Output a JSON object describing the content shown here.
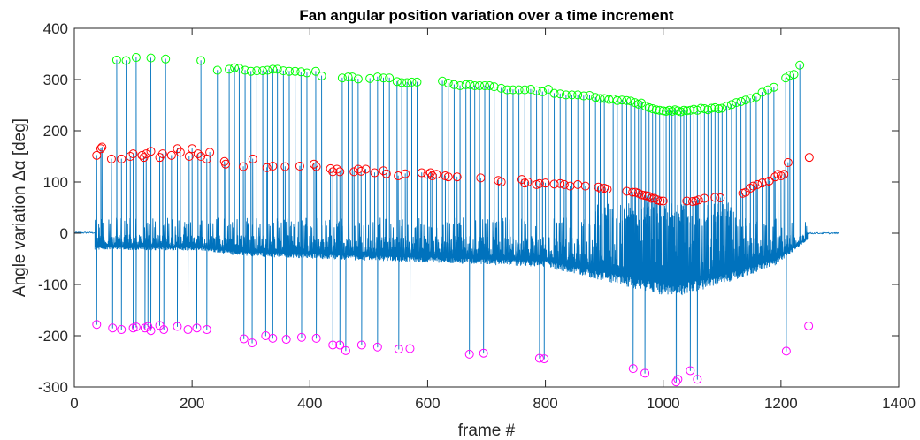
{
  "chart_data": {
    "type": "line",
    "title": "Fan angular position variation over a time increment",
    "xlabel": "frame #",
    "ylabel": "Angle variation Δα [deg]",
    "xlim": [
      0,
      1400
    ],
    "ylim": [
      -300,
      400
    ],
    "xticks": [
      0,
      200,
      400,
      600,
      800,
      1000,
      1200,
      1400
    ],
    "yticks": [
      -300,
      -200,
      -100,
      0,
      100,
      200,
      300,
      400
    ],
    "grid": false,
    "colors": {
      "line": "#0072BD",
      "top_markers": "#00FF00",
      "mid_markers": "#FF0000",
      "bottom_markers": "#FF00FF"
    },
    "top_peaks": [
      [
        72,
        338
      ],
      [
        88,
        337
      ],
      [
        105,
        343
      ],
      [
        130,
        342
      ],
      [
        155,
        340
      ],
      [
        215,
        337
      ],
      [
        243,
        318
      ],
      [
        263,
        320
      ],
      [
        272,
        323
      ],
      [
        280,
        322
      ],
      [
        290,
        318
      ],
      [
        300,
        316
      ],
      [
        310,
        317
      ],
      [
        320,
        317
      ],
      [
        328,
        318
      ],
      [
        337,
        320
      ],
      [
        345,
        320
      ],
      [
        355,
        317
      ],
      [
        365,
        316
      ],
      [
        375,
        316
      ],
      [
        385,
        315
      ],
      [
        395,
        313
      ],
      [
        410,
        316
      ],
      [
        420,
        307
      ],
      [
        455,
        303
      ],
      [
        465,
        305
      ],
      [
        472,
        305
      ],
      [
        482,
        301
      ],
      [
        502,
        302
      ],
      [
        515,
        305
      ],
      [
        525,
        303
      ],
      [
        535,
        303
      ],
      [
        548,
        296
      ],
      [
        556,
        294
      ],
      [
        565,
        294
      ],
      [
        573,
        295
      ],
      [
        582,
        295
      ],
      [
        625,
        297
      ],
      [
        635,
        293
      ],
      [
        645,
        290
      ],
      [
        655,
        288
      ],
      [
        665,
        290
      ],
      [
        672,
        290
      ],
      [
        680,
        288
      ],
      [
        688,
        288
      ],
      [
        697,
        288
      ],
      [
        705,
        288
      ],
      [
        713,
        286
      ],
      [
        725,
        283
      ],
      [
        735,
        280
      ],
      [
        745,
        280
      ],
      [
        755,
        280
      ],
      [
        765,
        280
      ],
      [
        775,
        281
      ],
      [
        785,
        278
      ],
      [
        795,
        276
      ],
      [
        805,
        281
      ],
      [
        815,
        273
      ],
      [
        825,
        272
      ],
      [
        835,
        270
      ],
      [
        845,
        270
      ],
      [
        855,
        270
      ],
      [
        865,
        268
      ],
      [
        875,
        269
      ],
      [
        885,
        265
      ],
      [
        893,
        263
      ],
      [
        900,
        263
      ],
      [
        908,
        261
      ],
      [
        915,
        262
      ],
      [
        922,
        259
      ],
      [
        930,
        260
      ],
      [
        938,
        259
      ],
      [
        945,
        258
      ],
      [
        952,
        255
      ],
      [
        958,
        252
      ],
      [
        963,
        254
      ],
      [
        970,
        248
      ],
      [
        976,
        245
      ],
      [
        982,
        243
      ],
      [
        988,
        241
      ],
      [
        994,
        240
      ],
      [
        1000,
        239
      ],
      [
        1005,
        238
      ],
      [
        1010,
        240
      ],
      [
        1015,
        238
      ],
      [
        1020,
        241
      ],
      [
        1025,
        239
      ],
      [
        1030,
        237
      ],
      [
        1035,
        240
      ],
      [
        1040,
        239
      ],
      [
        1046,
        240
      ],
      [
        1052,
        242
      ],
      [
        1058,
        240
      ],
      [
        1064,
        244
      ],
      [
        1070,
        243
      ],
      [
        1076,
        241
      ],
      [
        1082,
        244
      ],
      [
        1088,
        245
      ],
      [
        1094,
        243
      ],
      [
        1100,
        244
      ],
      [
        1108,
        248
      ],
      [
        1116,
        251
      ],
      [
        1124,
        255
      ],
      [
        1132,
        257
      ],
      [
        1140,
        260
      ],
      [
        1148,
        263
      ],
      [
        1158,
        266
      ],
      [
        1168,
        275
      ],
      [
        1178,
        280
      ],
      [
        1188,
        285
      ],
      [
        1208,
        303
      ],
      [
        1215,
        308
      ],
      [
        1222,
        310
      ],
      [
        1232,
        328
      ]
    ],
    "mid_peaks": [
      [
        38,
        152
      ],
      [
        45,
        165
      ],
      [
        47,
        168
      ],
      [
        63,
        145
      ],
      [
        80,
        145
      ],
      [
        95,
        150
      ],
      [
        100,
        155
      ],
      [
        115,
        152
      ],
      [
        118,
        148
      ],
      [
        122,
        155
      ],
      [
        130,
        160
      ],
      [
        145,
        148
      ],
      [
        150,
        155
      ],
      [
        165,
        152
      ],
      [
        175,
        165
      ],
      [
        180,
        158
      ],
      [
        195,
        150
      ],
      [
        200,
        165
      ],
      [
        210,
        155
      ],
      [
        215,
        150
      ],
      [
        225,
        145
      ],
      [
        230,
        158
      ],
      [
        255,
        140
      ],
      [
        257,
        135
      ],
      [
        287,
        130
      ],
      [
        303,
        145
      ],
      [
        327,
        128
      ],
      [
        337,
        131
      ],
      [
        358,
        130
      ],
      [
        383,
        131
      ],
      [
        407,
        135
      ],
      [
        411,
        130
      ],
      [
        435,
        126
      ],
      [
        439,
        120
      ],
      [
        446,
        125
      ],
      [
        451,
        120
      ],
      [
        475,
        120
      ],
      [
        482,
        125
      ],
      [
        487,
        121
      ],
      [
        495,
        125
      ],
      [
        510,
        118
      ],
      [
        525,
        122
      ],
      [
        530,
        116
      ],
      [
        550,
        112
      ],
      [
        562,
        116
      ],
      [
        590,
        118
      ],
      [
        600,
        115
      ],
      [
        605,
        118
      ],
      [
        608,
        112
      ],
      [
        615,
        115
      ],
      [
        630,
        112
      ],
      [
        635,
        110
      ],
      [
        650,
        110
      ],
      [
        690,
        108
      ],
      [
        720,
        103
      ],
      [
        725,
        100
      ],
      [
        760,
        105
      ],
      [
        765,
        98
      ],
      [
        770,
        100
      ],
      [
        785,
        95
      ],
      [
        790,
        97
      ],
      [
        800,
        98
      ],
      [
        815,
        96
      ],
      [
        825,
        97
      ],
      [
        832,
        95
      ],
      [
        842,
        92
      ],
      [
        855,
        95
      ],
      [
        868,
        92
      ],
      [
        890,
        90
      ],
      [
        895,
        86
      ],
      [
        900,
        88
      ],
      [
        905,
        86
      ],
      [
        938,
        82
      ],
      [
        948,
        80
      ],
      [
        953,
        80
      ],
      [
        958,
        78
      ],
      [
        963,
        75
      ],
      [
        968,
        74
      ],
      [
        972,
        73
      ],
      [
        976,
        72
      ],
      [
        980,
        68
      ],
      [
        985,
        68
      ],
      [
        990,
        65
      ],
      [
        995,
        63
      ],
      [
        1000,
        63
      ],
      [
        1040,
        63
      ],
      [
        1050,
        62
      ],
      [
        1055,
        63
      ],
      [
        1060,
        65
      ],
      [
        1070,
        68
      ],
      [
        1088,
        70
      ],
      [
        1097,
        69
      ],
      [
        1135,
        78
      ],
      [
        1140,
        80
      ],
      [
        1148,
        88
      ],
      [
        1153,
        92
      ],
      [
        1160,
        95
      ],
      [
        1168,
        98
      ],
      [
        1175,
        100
      ],
      [
        1180,
        102
      ],
      [
        1190,
        110
      ],
      [
        1195,
        115
      ],
      [
        1200,
        112
      ],
      [
        1205,
        115
      ],
      [
        1212,
        138
      ],
      [
        1248,
        148
      ]
    ],
    "bottom_peaks": [
      [
        38,
        -178
      ],
      [
        65,
        -185
      ],
      [
        80,
        -188
      ],
      [
        100,
        -185
      ],
      [
        105,
        -183
      ],
      [
        120,
        -185
      ],
      [
        125,
        -182
      ],
      [
        130,
        -190
      ],
      [
        145,
        -180
      ],
      [
        152,
        -188
      ],
      [
        175,
        -182
      ],
      [
        193,
        -188
      ],
      [
        208,
        -185
      ],
      [
        225,
        -188
      ],
      [
        288,
        -206
      ],
      [
        302,
        -214
      ],
      [
        325,
        -200
      ],
      [
        337,
        -205
      ],
      [
        360,
        -207
      ],
      [
        386,
        -203
      ],
      [
        411,
        -205
      ],
      [
        439,
        -218
      ],
      [
        451,
        -218
      ],
      [
        461,
        -229
      ],
      [
        488,
        -218
      ],
      [
        515,
        -222
      ],
      [
        551,
        -226
      ],
      [
        570,
        -225
      ],
      [
        671,
        -236
      ],
      [
        695,
        -234
      ],
      [
        790,
        -244
      ],
      [
        798,
        -245
      ],
      [
        949,
        -264
      ],
      [
        969,
        -273
      ],
      [
        1022,
        -290
      ],
      [
        1025,
        -285
      ],
      [
        1046,
        -268
      ],
      [
        1058,
        -285
      ],
      [
        1209,
        -230
      ],
      [
        1247,
        -181
      ]
    ],
    "baseline": {
      "x_start": 0,
      "lead_in_end": 30,
      "active_start": 35,
      "active_end": 1245,
      "x_end": 1298,
      "lower_envelope": [
        [
          35,
          -30
        ],
        [
          220,
          -32
        ],
        [
          280,
          -42
        ],
        [
          800,
          -62
        ],
        [
          980,
          -110
        ],
        [
          1020,
          -118
        ],
        [
          1100,
          -95
        ],
        [
          1190,
          -60
        ],
        [
          1245,
          -12
        ]
      ]
    }
  }
}
